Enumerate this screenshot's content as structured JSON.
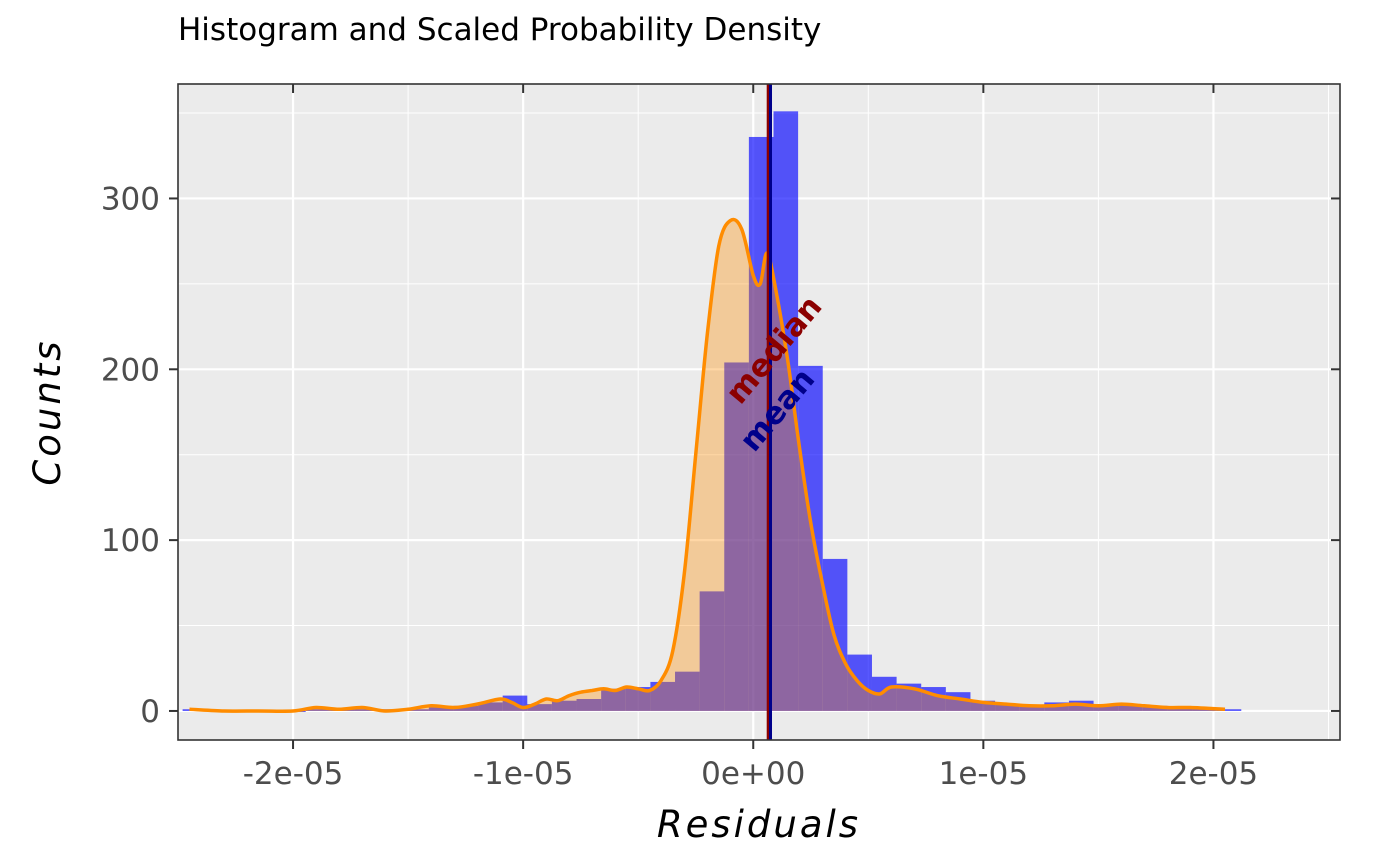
{
  "chart_data": {
    "type": "bar",
    "title": "Histogram and Scaled Probability Density",
    "xlabel": "Residuals",
    "ylabel": "Counts",
    "xlim": [
      -2.5e-05,
      2.55e-05
    ],
    "ylim": [
      -17,
      367
    ],
    "x_ticks": [
      -2e-05,
      -1e-05,
      0,
      1e-05,
      2e-05
    ],
    "x_tick_labels": [
      "-2e-05",
      "-1e-05",
      "0e+00",
      "1e-05",
      "2e-05"
    ],
    "y_ticks": [
      0,
      100,
      200,
      300
    ],
    "y_tick_labels": [
      "0",
      "100",
      "200",
      "300"
    ],
    "grid": true,
    "legend": "none",
    "histogram": {
      "bin_width": 1.07e-06,
      "fill_color": "#0000ff",
      "bins_left": [
        -2.48e-05,
        -2.373e-05,
        -2.266e-05,
        -2.159e-05,
        -2.052e-05,
        -1.945e-05,
        -1.838e-05,
        -1.731e-05,
        -1.624e-05,
        -1.517e-05,
        -1.41e-05,
        -1.303e-05,
        -1.196e-05,
        -1.089e-05,
        -9.82e-06,
        -8.75e-06,
        -7.68e-06,
        -6.61e-06,
        -5.54e-06,
        -4.47e-06,
        -3.4e-06,
        -2.33e-06,
        -1.26e-06,
        -1.9e-07,
        8.8e-07,
        1.95e-06,
        3.02e-06,
        4.09e-06,
        5.16e-06,
        6.23e-06,
        7.3e-06,
        8.37e-06,
        9.44e-06,
        1.051e-05,
        1.158e-05,
        1.265e-05,
        1.372e-05,
        1.479e-05,
        1.586e-05,
        1.693e-05,
        1.8e-05,
        1.907e-05,
        2.014e-05
      ],
      "counts": [
        1,
        0,
        0,
        0,
        0,
        1,
        1,
        1,
        1,
        1,
        2,
        3,
        5,
        9,
        4,
        6,
        7,
        13,
        14,
        17,
        23,
        70,
        204,
        336,
        351,
        202,
        89,
        33,
        20,
        16,
        14,
        11,
        6,
        4,
        3,
        5,
        6,
        4,
        4,
        3,
        2,
        2,
        1
      ]
    },
    "density_curve": {
      "name": "Scaled Probability Density",
      "color": "#ff8c00",
      "x": [
        -2.45e-05,
        -2.3e-05,
        -2.15e-05,
        -2e-05,
        -1.9e-05,
        -1.8e-05,
        -1.7e-05,
        -1.6e-05,
        -1.5e-05,
        -1.4e-05,
        -1.3e-05,
        -1.2e-05,
        -1.1e-05,
        -1.05e-05,
        -1e-05,
        -9.5e-06,
        -9e-06,
        -8.5e-06,
        -8e-06,
        -7.5e-06,
        -7e-06,
        -6.5e-06,
        -6e-06,
        -5.5e-06,
        -5e-06,
        -4.5e-06,
        -4e-06,
        -3.5e-06,
        -3e-06,
        -2.5e-06,
        -2e-06,
        -1.5e-06,
        -1e-06,
        -5e-07,
        0,
        3e-07,
        6e-07,
        1e-06,
        1.5e-06,
        2e-06,
        2.5e-06,
        3e-06,
        3.5e-06,
        4e-06,
        4.5e-06,
        5e-06,
        5.5e-06,
        6e-06,
        7e-06,
        8e-06,
        9e-06,
        1e-05,
        1.1e-05,
        1.2e-05,
        1.3e-05,
        1.4e-05,
        1.5e-05,
        1.6e-05,
        1.7e-05,
        1.8e-05,
        1.9e-05,
        2.05e-05
      ],
      "y": [
        1,
        0,
        0,
        0,
        2,
        1,
        2,
        0,
        1,
        3,
        2,
        4,
        7,
        5,
        2,
        4,
        7,
        6,
        9,
        11,
        12,
        13,
        12,
        14,
        13,
        12,
        18,
        35,
        80,
        150,
        220,
        272,
        287,
        282,
        255,
        250,
        268,
        245,
        205,
        155,
        110,
        75,
        45,
        28,
        18,
        12,
        10,
        14,
        13,
        9,
        7,
        5,
        4,
        3,
        3,
        4,
        3,
        4,
        3,
        2,
        2,
        1
      ]
    },
    "vlines": [
      {
        "name": "median",
        "x": 6.5e-07,
        "color": "#8b0000",
        "label": "median"
      },
      {
        "name": "mean",
        "x": 7.5e-07,
        "color": "#00008b",
        "label": "mean"
      }
    ]
  }
}
